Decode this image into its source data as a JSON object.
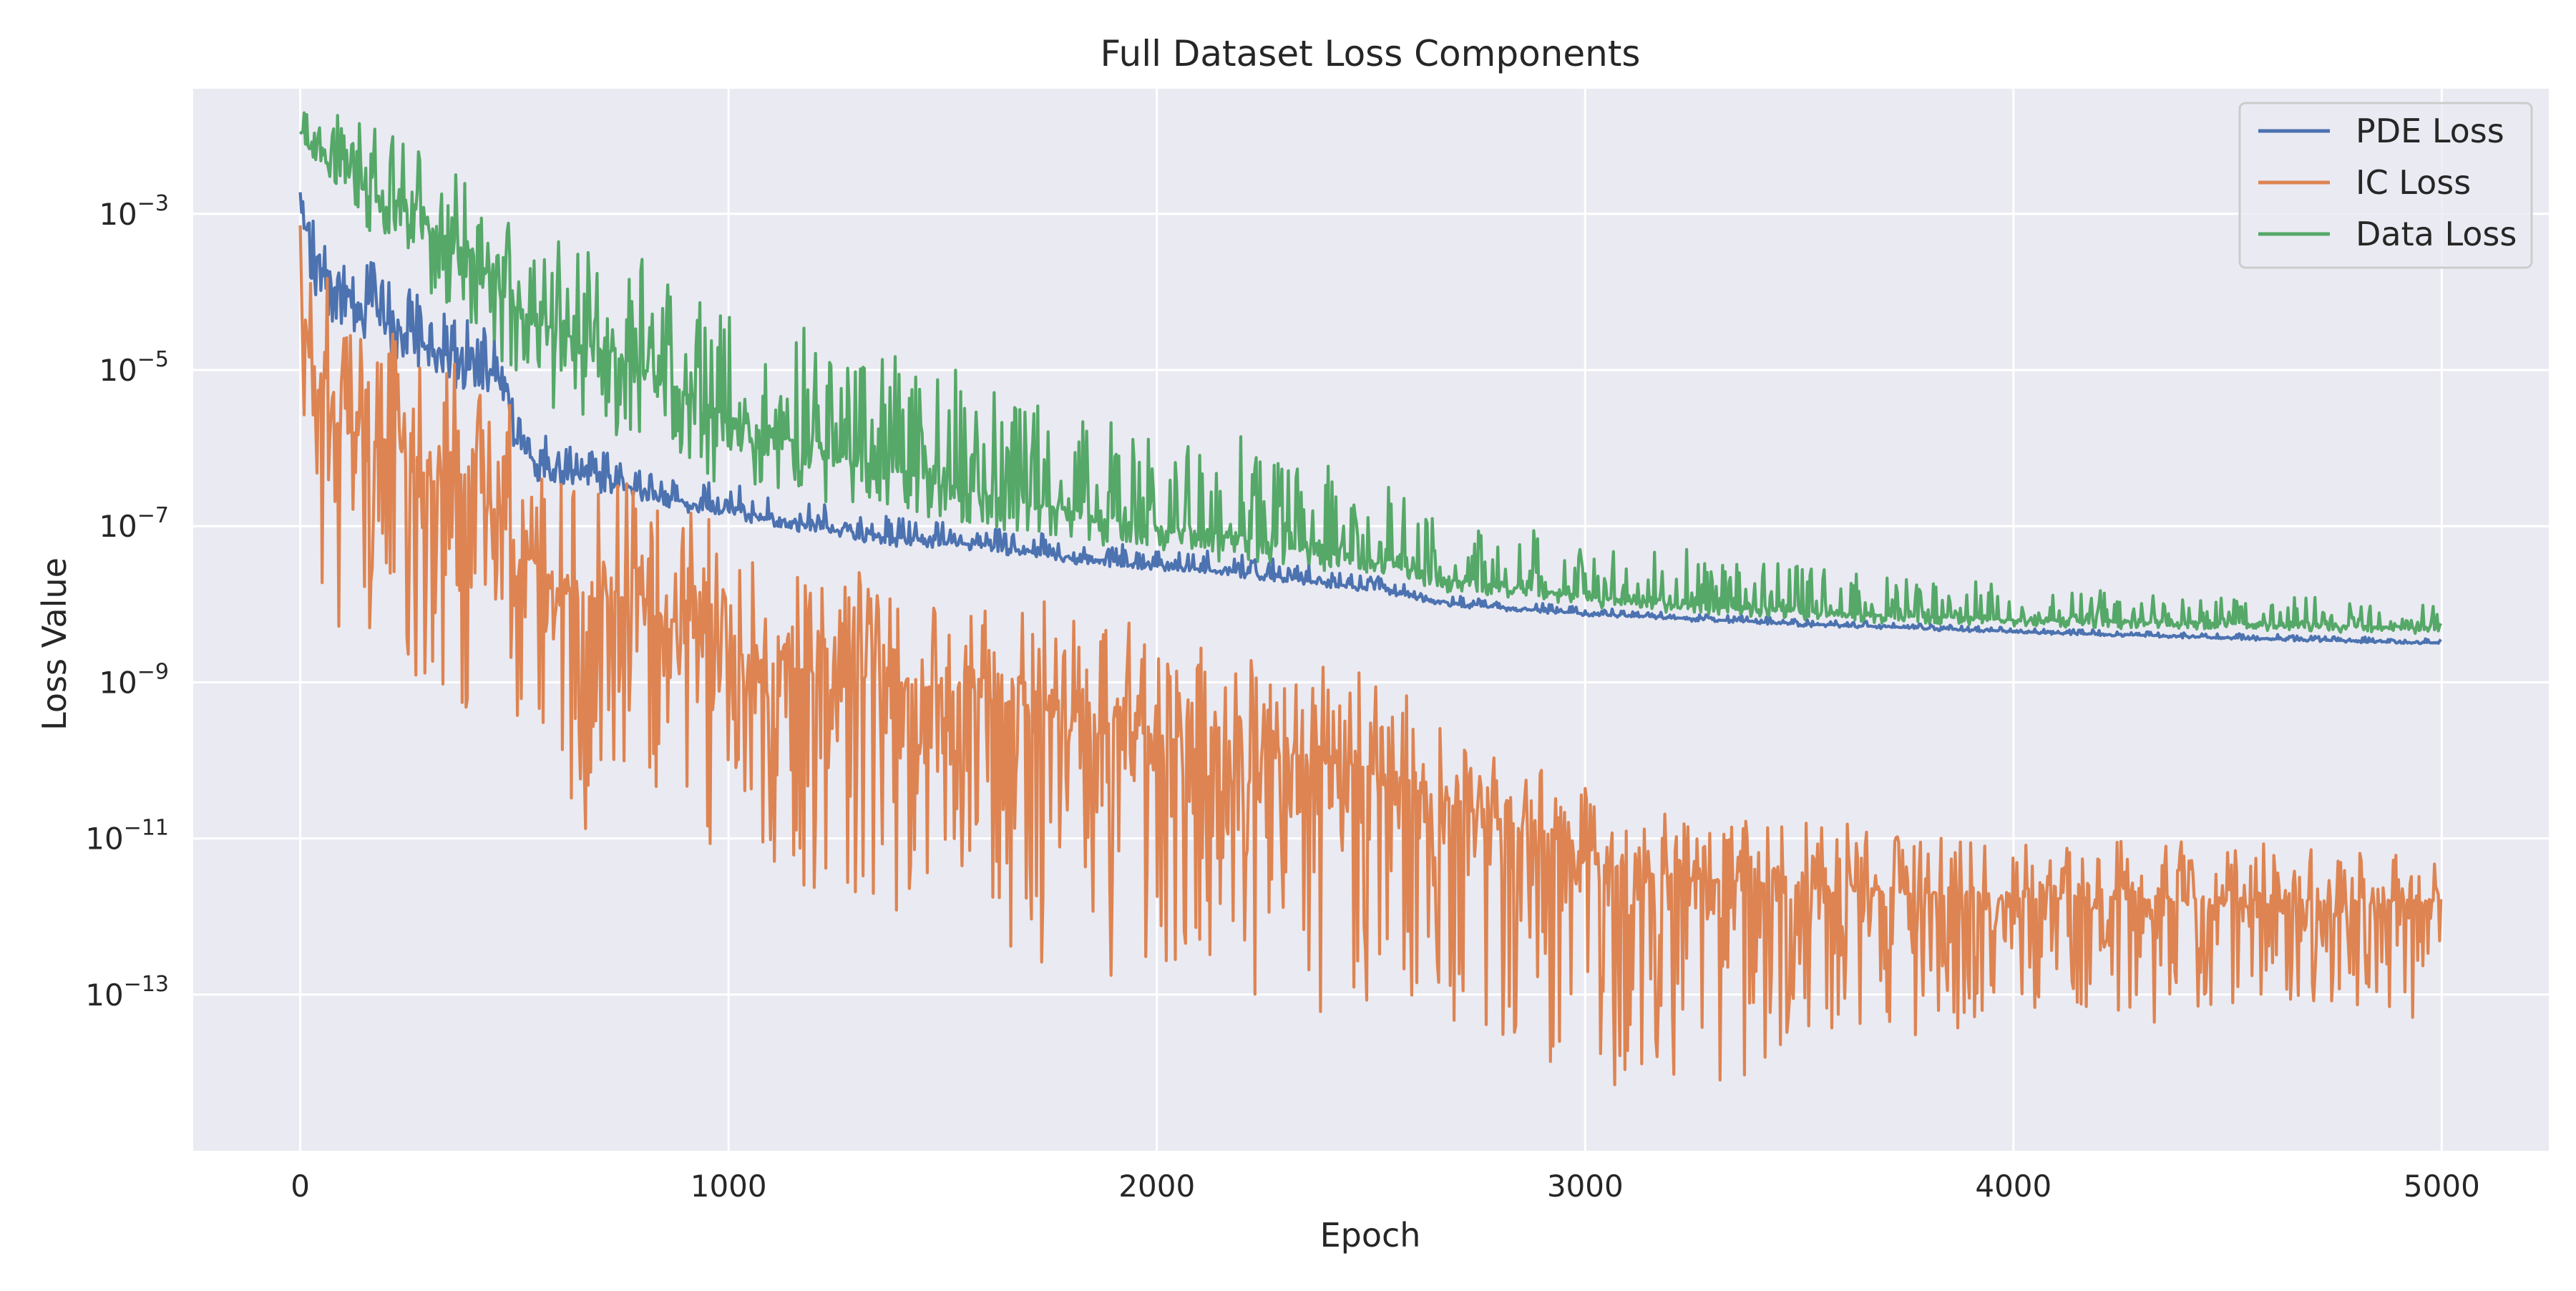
{
  "chart_data": {
    "type": "line",
    "title": "Full Dataset Loss Components",
    "xlabel": "Epoch",
    "ylabel": "Loss Value",
    "xlim": [
      -250,
      5250
    ],
    "ylim": [
      1e-15,
      0.04
    ],
    "yscale": "log",
    "grid": true,
    "legend_position": "top-right",
    "x_ticks": [
      {
        "value": 0,
        "label": "0"
      },
      {
        "value": 1000,
        "label": "1000"
      },
      {
        "value": 2000,
        "label": "2000"
      },
      {
        "value": 3000,
        "label": "3000"
      },
      {
        "value": 4000,
        "label": "4000"
      },
      {
        "value": 5000,
        "label": "5000"
      }
    ],
    "y_ticks": [
      {
        "exp": -3,
        "base": "10",
        "sup": "−3"
      },
      {
        "exp": -5,
        "base": "10",
        "sup": "−5"
      },
      {
        "exp": -7,
        "base": "10",
        "sup": "−7"
      },
      {
        "exp": -9,
        "base": "10",
        "sup": "−9"
      },
      {
        "exp": -11,
        "base": "10",
        "sup": "−11"
      },
      {
        "exp": -13,
        "base": "10",
        "sup": "−13"
      }
    ],
    "series": [
      {
        "name": "PDE Loss",
        "color": "#4c72b0",
        "epochs": [
          0,
          20,
          50,
          100,
          150,
          200,
          300,
          400,
          480,
          500,
          550,
          700,
          900,
          1000,
          1200,
          1400,
          1600,
          1800,
          2000,
          2200,
          2500,
          2700,
          3000,
          3500,
          4000,
          4500,
          5000
        ],
        "log10_values": [
          -2.7,
          -3.3,
          -3.7,
          -4.0,
          -4.2,
          -4.4,
          -4.7,
          -5.0,
          -5.1,
          -5.9,
          -6.2,
          -6.4,
          -6.7,
          -6.8,
          -7.0,
          -7.15,
          -7.25,
          -7.4,
          -7.5,
          -7.6,
          -7.8,
          -8.0,
          -8.12,
          -8.25,
          -8.35,
          -8.43,
          -8.5
        ],
        "noise_up": [
          0.6,
          0.8,
          0.8,
          0.7,
          0.7,
          0.6,
          0.6,
          0.5,
          0.5,
          0.4,
          0.4,
          0.35,
          0.3,
          0.3,
          0.3,
          0.25,
          0.25,
          0.2,
          0.2,
          0.2,
          0.15,
          0.1,
          0.08,
          0.06,
          0.05,
          0.05,
          0.05
        ],
        "noise_down": [
          0.3,
          0.5,
          0.5,
          0.5,
          0.4,
          0.4,
          0.3,
          0.3,
          0.3,
          0.2,
          0.2,
          0.15,
          0.12,
          0.1,
          0.1,
          0.1,
          0.08,
          0.08,
          0.06,
          0.06,
          0.05,
          0.04,
          0.03,
          0.03,
          0.02,
          0.02,
          0.02
        ]
      },
      {
        "name": "IC Loss",
        "color": "#dd8452",
        "epochs": [
          0,
          50,
          100,
          200,
          300,
          400,
          500,
          600,
          800,
          1000,
          1200,
          1400,
          1600,
          1800,
          2000,
          2200,
          2500,
          2700,
          2900,
          3000,
          3200,
          3500,
          4000,
          4500,
          5000
        ],
        "log10_values": [
          -4.0,
          -5.5,
          -5.8,
          -5.9,
          -6.2,
          -6.4,
          -7.2,
          -7.8,
          -8.0,
          -8.6,
          -8.9,
          -9.0,
          -9.2,
          -9.4,
          -9.7,
          -9.9,
          -10.1,
          -10.6,
          -10.9,
          -11.3,
          -11.5,
          -11.6,
          -11.75,
          -11.8,
          -11.8
        ],
        "noise_up": [
          1.5,
          1.6,
          1.5,
          1.4,
          1.3,
          1.3,
          1.4,
          1.4,
          1.3,
          1.3,
          1.2,
          1.2,
          1.2,
          1.2,
          1.2,
          1.1,
          1.0,
          0.9,
          0.9,
          0.9,
          0.8,
          0.8,
          0.7,
          0.7,
          0.6
        ],
        "noise_down": [
          2.0,
          2.5,
          2.8,
          2.9,
          3.0,
          3.0,
          2.8,
          2.7,
          2.8,
          2.8,
          2.9,
          2.9,
          2.9,
          2.9,
          2.9,
          2.9,
          2.9,
          2.9,
          2.9,
          2.7,
          2.6,
          1.9,
          1.5,
          1.4,
          1.3
        ]
      },
      {
        "name": "Data Loss",
        "color": "#55a868",
        "epochs": [
          0,
          100,
          200,
          300,
          400,
          500,
          600,
          800,
          1000,
          1200,
          1400,
          1600,
          1800,
          2000,
          2200,
          2500,
          2700,
          3000,
          3500,
          4000,
          4500,
          5000
        ],
        "log10_values": [
          -2.0,
          -2.3,
          -2.9,
          -3.2,
          -3.5,
          -4.2,
          -4.5,
          -5.0,
          -5.6,
          -6.0,
          -6.3,
          -6.6,
          -6.8,
          -7.0,
          -7.15,
          -7.45,
          -7.7,
          -7.9,
          -8.1,
          -8.2,
          -8.25,
          -8.3
        ],
        "noise_up": [
          0.3,
          0.6,
          1.0,
          1.0,
          1.1,
          1.1,
          1.1,
          1.2,
          1.3,
          1.3,
          1.5,
          1.4,
          1.3,
          1.2,
          1.1,
          1.0,
          0.8,
          0.6,
          0.6,
          0.35,
          0.3,
          0.3
        ],
        "noise_down": [
          0.2,
          0.4,
          0.7,
          0.8,
          0.9,
          0.9,
          0.9,
          1.0,
          0.8,
          0.6,
          0.5,
          0.4,
          0.35,
          0.3,
          0.3,
          0.2,
          0.15,
          0.12,
          0.1,
          0.08,
          0.08,
          0.08
        ]
      }
    ]
  }
}
